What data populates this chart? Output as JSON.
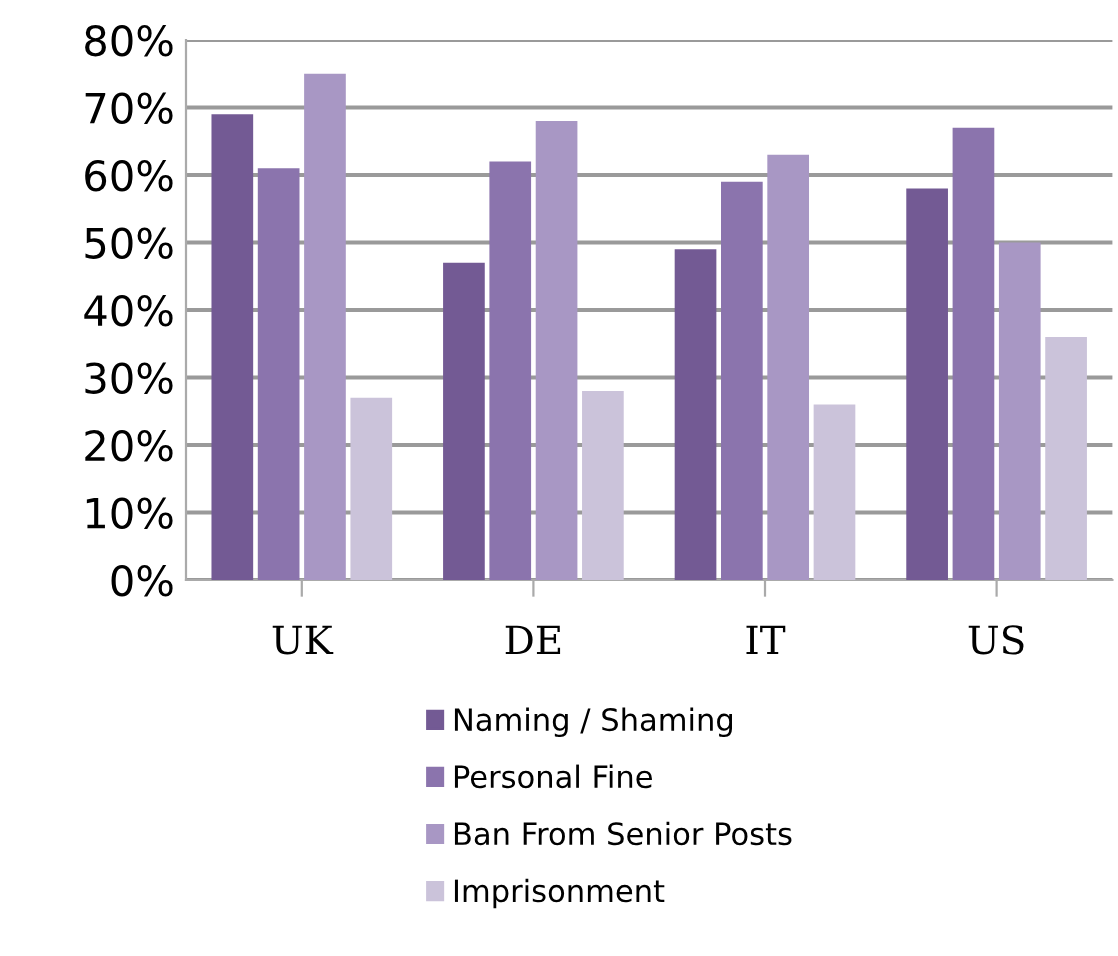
{
  "chart_data": {
    "type": "bar",
    "categories": [
      "UK",
      "DE",
      "IT",
      "US"
    ],
    "series": [
      {
        "name": "Naming / Shaming",
        "color": "#735a94",
        "values": [
          69,
          47,
          49,
          58
        ]
      },
      {
        "name": "Personal Fine",
        "color": "#8b74ad",
        "values": [
          61,
          62,
          59,
          67
        ]
      },
      {
        "name": "Ban From Senior Posts",
        "color": "#a897c4",
        "values": [
          75,
          68,
          63,
          50
        ]
      },
      {
        "name": "Imprisonment",
        "color": "#cbc3da",
        "values": [
          27,
          28,
          26,
          36
        ]
      }
    ],
    "ylim": [
      0,
      80
    ],
    "yticks": [
      {
        "value": 0,
        "label": "0%"
      },
      {
        "value": 10,
        "label": "10%"
      },
      {
        "value": 20,
        "label": "20%"
      },
      {
        "value": 30,
        "label": "30%"
      },
      {
        "value": 40,
        "label": "40%"
      },
      {
        "value": 50,
        "label": "50%"
      },
      {
        "value": 60,
        "label": "60%"
      },
      {
        "value": 70,
        "label": "70%"
      },
      {
        "value": 80,
        "label": "80%"
      }
    ],
    "grid": "y",
    "legend": "bottom"
  }
}
